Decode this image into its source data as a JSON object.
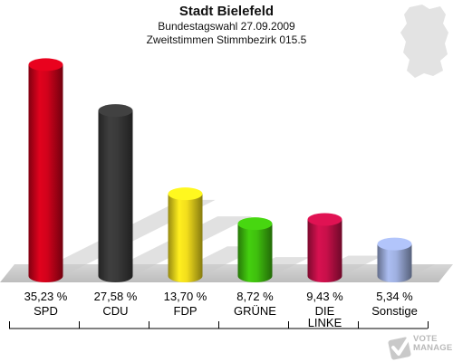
{
  "header": {
    "title": "Stadt Bielefeld",
    "subtitle_1": "Bundestagswahl 27.09.2009",
    "subtitle_2": "Zweitstimmen Stimmbezirk 015.5"
  },
  "chart_data": {
    "type": "bar",
    "title": "Stadt Bielefeld",
    "subtitle": [
      "Bundestagswahl 27.09.2009",
      "Zweitstimmen Stimmbezirk 015.5"
    ],
    "categories": [
      "SPD",
      "CDU",
      "FDP",
      "GRÜNE",
      "DIE LINKE",
      "Sonstige"
    ],
    "category_labels": [
      [
        "SPD"
      ],
      [
        "CDU"
      ],
      [
        "FDP"
      ],
      [
        "GRÜNE"
      ],
      [
        "DIE",
        "LINKE"
      ],
      [
        "Sonstige"
      ]
    ],
    "values": [
      35.23,
      27.58,
      13.7,
      8.72,
      9.43,
      5.34
    ],
    "value_labels": [
      "35,23 %",
      "27,58 %",
      "13,70 %",
      "8,72 %",
      "9,43 %",
      "5,34 %"
    ],
    "colors": [
      "#d0021b",
      "#3a3a3a",
      "#f2dd1c",
      "#3fc00e",
      "#c8104a",
      "#9fb0e0"
    ],
    "ylim": [
      0,
      40
    ],
    "grid": false,
    "legend": "none"
  },
  "branding": {
    "text": [
      "VOTE",
      "MANAGER"
    ],
    "icon": "checkmark-ballot-icon"
  },
  "decor": {
    "map_icon": "germany-map-icon"
  }
}
